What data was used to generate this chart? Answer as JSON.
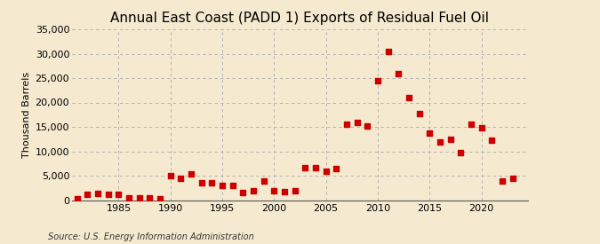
{
  "title": "Annual East Coast (PADD 1) Exports of Residual Fuel Oil",
  "ylabel": "Thousand Barrels",
  "source": "Source: U.S. Energy Information Administration",
  "background_color": "#f5ead0",
  "plot_bg_color": "#f5ead0",
  "marker_color": "#cc0000",
  "years": [
    1981,
    1982,
    1983,
    1984,
    1985,
    1986,
    1987,
    1988,
    1989,
    1990,
    1991,
    1992,
    1993,
    1994,
    1995,
    1996,
    1997,
    1998,
    1999,
    2000,
    2001,
    2002,
    2003,
    2004,
    2005,
    2006,
    2007,
    2008,
    2009,
    2010,
    2011,
    2012,
    2013,
    2014,
    2015,
    2016,
    2017,
    2018,
    2019,
    2020,
    2021,
    2022,
    2023
  ],
  "values": [
    200,
    1200,
    1300,
    1200,
    1100,
    500,
    400,
    400,
    200,
    5000,
    4500,
    5300,
    3500,
    3500,
    3000,
    3000,
    1600,
    2000,
    4000,
    2000,
    1800,
    2000,
    6700,
    6700,
    6000,
    6500,
    15500,
    16000,
    15200,
    24500,
    30500,
    26000,
    21000,
    17800,
    13800,
    12000,
    12500,
    9800,
    15500,
    14800,
    12300,
    4000,
    4500
  ],
  "xlim": [
    1980.5,
    2024.5
  ],
  "ylim": [
    0,
    35000
  ],
  "yticks": [
    0,
    5000,
    10000,
    15000,
    20000,
    25000,
    30000,
    35000
  ],
  "xticks": [
    1985,
    1990,
    1995,
    2000,
    2005,
    2010,
    2015,
    2020
  ],
  "title_fontsize": 11,
  "tick_fontsize": 8,
  "ylabel_fontsize": 8,
  "source_fontsize": 7
}
